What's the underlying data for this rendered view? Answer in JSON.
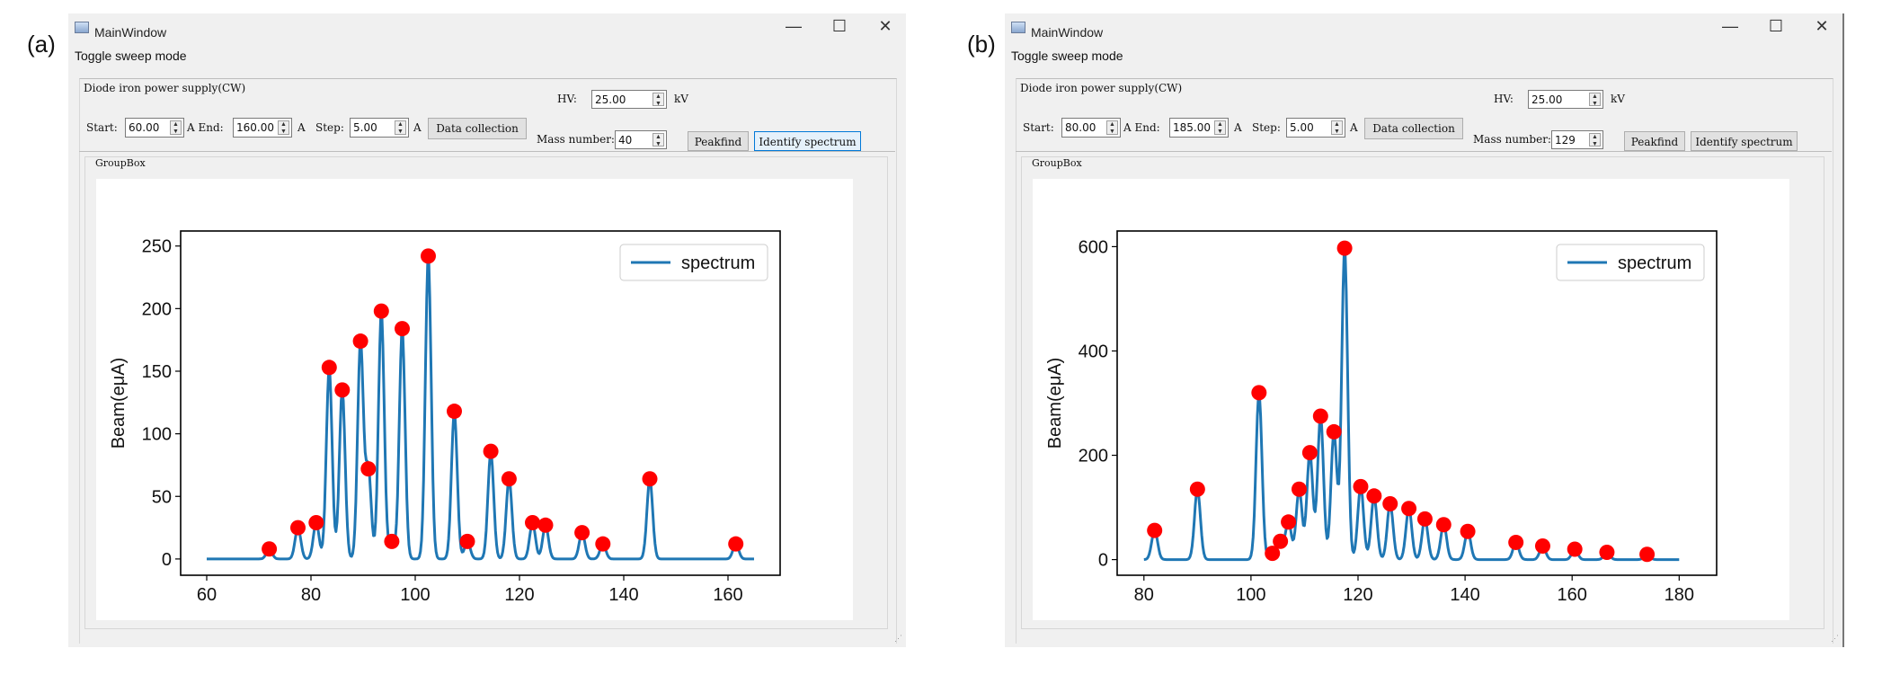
{
  "panels": [
    {
      "label": "(a)",
      "window_title": "MainWindow",
      "controls": {
        "minimize": "—",
        "maximize": "☐",
        "close": "✕"
      },
      "menu": "Toggle sweep mode",
      "group_title": "Diode iron power supply(CW)",
      "hv_label": "HV:",
      "hv_value": "25.00",
      "hv_unit": "kV",
      "start_label": "Start:",
      "start_value": "60.00",
      "end_label": "A  End:",
      "end_value": "160.00",
      "step_label": "Step:",
      "step_value": "5.00",
      "unit_a": "A",
      "data_collection": "Data collection",
      "mass_label": "Mass number:",
      "mass_value": "40",
      "peakfind": "Peakfind",
      "identify": "Identify spectrum",
      "groupbox_title": "GroupBox",
      "focused_button": "identify"
    },
    {
      "label": "(b)",
      "window_title": "MainWindow",
      "controls": {
        "minimize": "—",
        "maximize": "☐",
        "close": "✕"
      },
      "menu": "Toggle sweep mode",
      "group_title": "Diode iron power supply(CW)",
      "hv_label": "HV:",
      "hv_value": "25.00",
      "hv_unit": "kV",
      "start_label": "Start:",
      "start_value": "80.00",
      "end_label": "A  End:",
      "end_value": "185.00",
      "step_label": "Step:",
      "step_value": "5.00",
      "unit_a": "A",
      "data_collection": "Data collection",
      "mass_label": "Mass number:",
      "mass_value": "129",
      "peakfind": "Peakfind",
      "identify": "Identify spectrum",
      "groupbox_title": "GroupBox",
      "focused_button": "none"
    }
  ],
  "chart_data": [
    {
      "type": "line",
      "title": "",
      "ylabel": "Beam(eμA)",
      "xlim": [
        55,
        170
      ],
      "ylim": [
        -13,
        262
      ],
      "x_range": [
        60,
        165
      ],
      "xticks": [
        60,
        80,
        100,
        120,
        140,
        160
      ],
      "yticks": [
        0,
        50,
        100,
        150,
        200,
        250
      ],
      "legend": {
        "label": "spectrum",
        "placement": "top-right"
      },
      "line_color": "#1f77b4",
      "marker_color": "#ff0000",
      "peaks": [
        [
          72,
          8
        ],
        [
          77.5,
          25
        ],
        [
          81,
          29
        ],
        [
          83.5,
          153
        ],
        [
          86,
          135
        ],
        [
          89.5,
          174
        ],
        [
          91,
          72
        ],
        [
          93.5,
          198
        ],
        [
          95.5,
          14
        ],
        [
          97.5,
          184
        ],
        [
          102.5,
          242
        ],
        [
          107.5,
          118
        ],
        [
          110,
          14
        ],
        [
          114.5,
          86
        ],
        [
          118,
          64
        ],
        [
          122.5,
          29
        ],
        [
          125,
          27
        ],
        [
          132,
          21
        ],
        [
          136,
          12
        ],
        [
          145,
          64
        ],
        [
          161.5,
          12
        ]
      ]
    },
    {
      "type": "line",
      "title": "",
      "ylabel": "Beam(eμA)",
      "xlim": [
        75,
        187
      ],
      "ylim": [
        -30,
        630
      ],
      "x_range": [
        80,
        180
      ],
      "xticks": [
        80,
        100,
        120,
        140,
        160,
        180
      ],
      "yticks": [
        0,
        200,
        400,
        600
      ],
      "legend": {
        "label": "spectrum",
        "placement": "top-right"
      },
      "line_color": "#1f77b4",
      "marker_color": "#ff0000",
      "peaks": [
        [
          82,
          56
        ],
        [
          90,
          135
        ],
        [
          101.5,
          320
        ],
        [
          104,
          12
        ],
        [
          105.5,
          35
        ],
        [
          107,
          72
        ],
        [
          109,
          135
        ],
        [
          111,
          205
        ],
        [
          113,
          275
        ],
        [
          115.5,
          245
        ],
        [
          117.5,
          597
        ],
        [
          120.5,
          140
        ],
        [
          123,
          122
        ],
        [
          126,
          107
        ],
        [
          129.5,
          98
        ],
        [
          132.5,
          78
        ],
        [
          136,
          67
        ],
        [
          140.5,
          54
        ],
        [
          149.5,
          33
        ],
        [
          154.5,
          26
        ],
        [
          160.5,
          20
        ],
        [
          166.5,
          14
        ],
        [
          174,
          10
        ]
      ]
    }
  ]
}
